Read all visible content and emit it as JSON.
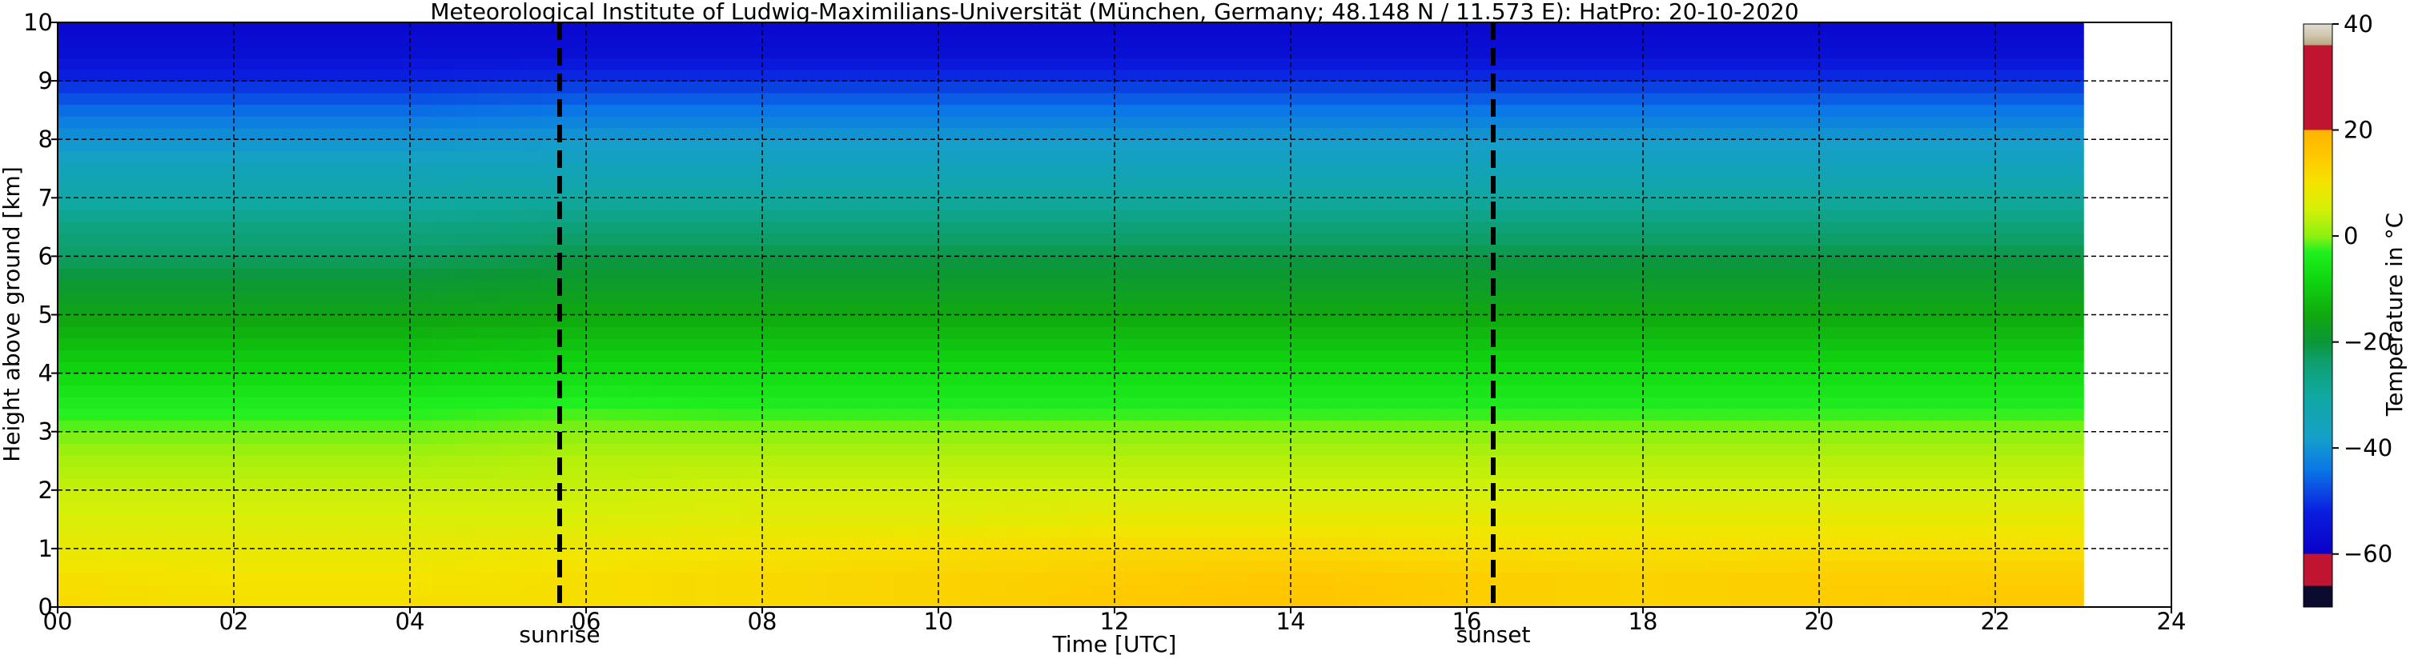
{
  "chart_data": {
    "type": "heatmap",
    "title": "Meteorological Institute of Ludwig-Maximilians-Universität (München, Germany; 48.148 N / 11.573 E):    HatPro: 20-10-2020",
    "xlabel": "Time [UTC]",
    "ylabel": "Height above ground [km]",
    "colorbar_label": "Temperature in °C",
    "xlim": [
      0,
      24
    ],
    "ylim": [
      0,
      10
    ],
    "x_ticks": [
      0,
      2,
      4,
      6,
      8,
      10,
      12,
      14,
      16,
      18,
      20,
      22,
      24
    ],
    "x_tick_labels": [
      "00",
      "02",
      "04",
      "06",
      "08",
      "10",
      "12",
      "14",
      "16",
      "18",
      "20",
      "22",
      "24"
    ],
    "y_ticks": [
      0,
      1,
      2,
      3,
      4,
      5,
      6,
      7,
      8,
      9,
      10
    ],
    "y_tick_labels": [
      "0",
      "1",
      "2",
      "3",
      "4",
      "5",
      "6",
      "7",
      "8",
      "9",
      "10"
    ],
    "colorbar_ticks": [
      -60,
      -40,
      -20,
      0,
      20,
      40
    ],
    "colorbar_tick_labels": [
      "−60",
      "−40",
      "−20",
      "0",
      "20",
      "40"
    ],
    "colorbar_range": [
      -70,
      40
    ],
    "colorbar_colors": [
      {
        "t": -70,
        "c": "#0b0b30"
      },
      {
        "t": -66,
        "c": "#0b0b30"
      },
      {
        "t": -66,
        "c": "#c01430"
      },
      {
        "t": -60,
        "c": "#c01430"
      },
      {
        "t": -60,
        "c": "#0a00c8"
      },
      {
        "t": -52,
        "c": "#0a1ee0"
      },
      {
        "t": -44,
        "c": "#0a78e6"
      },
      {
        "t": -38,
        "c": "#15a0c8"
      },
      {
        "t": -30,
        "c": "#10a8a0"
      },
      {
        "t": -24,
        "c": "#0ea070"
      },
      {
        "t": -20,
        "c": "#0c9638"
      },
      {
        "t": -15,
        "c": "#10a80f"
      },
      {
        "t": -8,
        "c": "#10d810"
      },
      {
        "t": -3,
        "c": "#20f020"
      },
      {
        "t": 0,
        "c": "#8ef010"
      },
      {
        "t": 5,
        "c": "#d4f008"
      },
      {
        "t": 10,
        "c": "#f4e400"
      },
      {
        "t": 15,
        "c": "#ffc800"
      },
      {
        "t": 20,
        "c": "#ffb400"
      },
      {
        "t": 20,
        "c": "#c01430"
      },
      {
        "t": 36,
        "c": "#c01430"
      },
      {
        "t": 36,
        "c": "#b8a880"
      },
      {
        "t": 38,
        "c": "#d0c8b0"
      },
      {
        "t": 40,
        "c": "#e0dcd0"
      }
    ],
    "data_end_time": 23.0,
    "heights": [
      0.0,
      0.5,
      1.0,
      1.5,
      2.0,
      2.5,
      3.0,
      3.5,
      4.0,
      4.5,
      5.0,
      5.5,
      6.0,
      6.5,
      7.0,
      7.5,
      8.0,
      8.5,
      9.0,
      9.5,
      10.0
    ],
    "times": [
      0,
      2,
      4,
      6,
      8,
      10,
      12,
      14,
      16,
      18,
      20,
      22,
      23
    ],
    "temperature": [
      [
        12,
        11,
        11,
        11,
        12,
        13,
        15,
        16,
        14,
        13,
        14,
        15,
        15
      ],
      [
        11,
        10,
        10,
        11,
        12,
        13,
        14,
        15,
        14,
        13,
        14,
        14,
        14
      ],
      [
        8,
        8,
        8,
        9,
        10,
        11,
        12,
        12,
        11,
        11,
        11,
        11,
        11
      ],
      [
        6,
        6,
        6,
        6,
        7,
        7,
        8,
        8,
        8,
        8,
        8,
        8,
        8
      ],
      [
        4,
        4,
        4,
        4,
        5,
        5,
        5,
        5,
        5,
        5,
        5,
        5,
        5
      ],
      [
        2,
        2,
        2,
        3,
        3,
        3,
        3,
        3,
        3,
        3,
        3,
        3,
        3
      ],
      [
        -1,
        -1,
        -1,
        0,
        0,
        0,
        0,
        0,
        0,
        0,
        0,
        0,
        0
      ],
      [
        -4,
        -4,
        -4,
        -3,
        -4,
        -4,
        -4,
        -4,
        -4,
        -4,
        -4,
        -4,
        -4
      ],
      [
        -8,
        -8,
        -8,
        -7,
        -7,
        -7,
        -7,
        -7,
        -7,
        -7,
        -7,
        -7,
        -7
      ],
      [
        -12,
        -12,
        -12,
        -11,
        -11,
        -11,
        -11,
        -11,
        -11,
        -11,
        -11,
        -11,
        -11
      ],
      [
        -16,
        -16,
        -16,
        -15,
        -15,
        -15,
        -15,
        -15,
        -15,
        -15,
        -15,
        -15,
        -15
      ],
      [
        -19,
        -19,
        -19,
        -18,
        -18,
        -18,
        -18,
        -18,
        -18,
        -18,
        -18,
        -18,
        -18
      ],
      [
        -23,
        -23,
        -23,
        -21,
        -21,
        -21,
        -21,
        -21,
        -21,
        -21,
        -21,
        -21,
        -21
      ],
      [
        -26,
        -26,
        -26,
        -25,
        -25,
        -25,
        -25,
        -25,
        -25,
        -25,
        -25,
        -25,
        -25
      ],
      [
        -31,
        -31,
        -31,
        -30,
        -30,
        -30,
        -30,
        -30,
        -30,
        -30,
        -30,
        -30,
        -30
      ],
      [
        -35,
        -35,
        -35,
        -35,
        -35,
        -35,
        -35,
        -35,
        -35,
        -35,
        -35,
        -35,
        -35
      ],
      [
        -40,
        -40,
        -40,
        -39,
        -39,
        -39,
        -39,
        -39,
        -39,
        -39,
        -39,
        -39,
        -39
      ],
      [
        -45,
        -45,
        -45,
        -44,
        -44,
        -44,
        -44,
        -44,
        -44,
        -44,
        -44,
        -44,
        -44
      ],
      [
        -51,
        -51,
        -51,
        -50,
        -50,
        -50,
        -50,
        -50,
        -50,
        -50,
        -50,
        -50,
        -50
      ],
      [
        -56,
        -56,
        -56,
        -56,
        -56,
        -56,
        -56,
        -56,
        -56,
        -56,
        -56,
        -56,
        -56
      ],
      [
        -58,
        -58,
        -58,
        -58,
        -58,
        -58,
        -58,
        -58,
        -58,
        -58,
        -58,
        -58,
        -58
      ]
    ],
    "markers": [
      {
        "label": "sunrise",
        "time": 5.7
      },
      {
        "label": "sunset",
        "time": 16.3
      }
    ],
    "grid": true
  }
}
